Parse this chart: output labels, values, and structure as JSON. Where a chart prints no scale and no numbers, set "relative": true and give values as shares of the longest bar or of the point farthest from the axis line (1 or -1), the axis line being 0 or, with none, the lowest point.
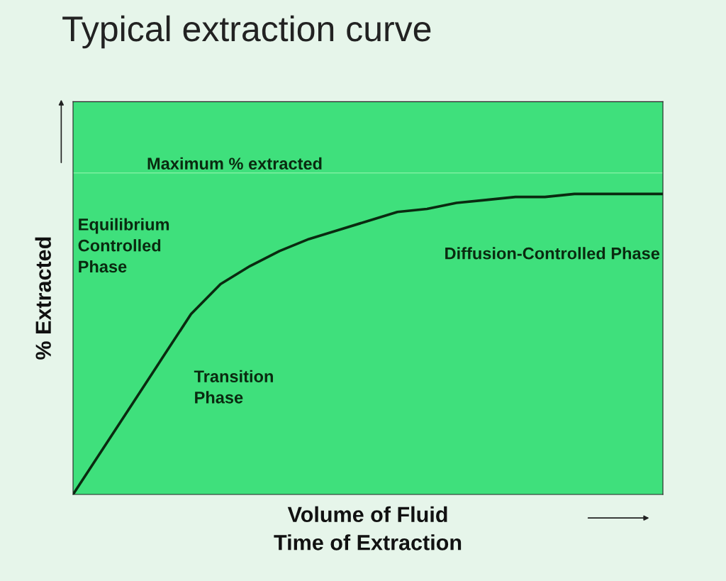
{
  "chart_data": {
    "type": "line",
    "title": "Typical extraction curve",
    "xlabel": "Volume of Fluid\nTime of Extraction",
    "ylabel": "% Extracted",
    "relative": true,
    "categories": [
      null,
      null,
      null,
      null,
      null,
      null,
      null,
      null,
      null,
      null,
      null,
      null,
      null,
      null,
      null,
      null,
      null,
      null,
      null,
      null,
      null
    ],
    "series": [
      {
        "color": "#0a2a10",
        "values": [
          0,
          0.15,
          0.3,
          0.45,
          0.6,
          0.7,
          0.76,
          0.81,
          0.85,
          0.88,
          0.91,
          0.94,
          0.95,
          0.97,
          0.98,
          0.99,
          0.99,
          1.0,
          1.0,
          1.0,
          1.0
        ]
      }
    ],
    "ref_lines": [
      {
        "axis": "y",
        "value": 1.07,
        "label": "Maximum % extracted",
        "color": "#7ef0a0"
      }
    ],
    "annotations": [
      "Equilibrium\nControlled\nPhase",
      "Transition\nPhase",
      "Diffusion-Controlled Phase"
    ],
    "marker": "none",
    "line_style": "solid"
  }
}
